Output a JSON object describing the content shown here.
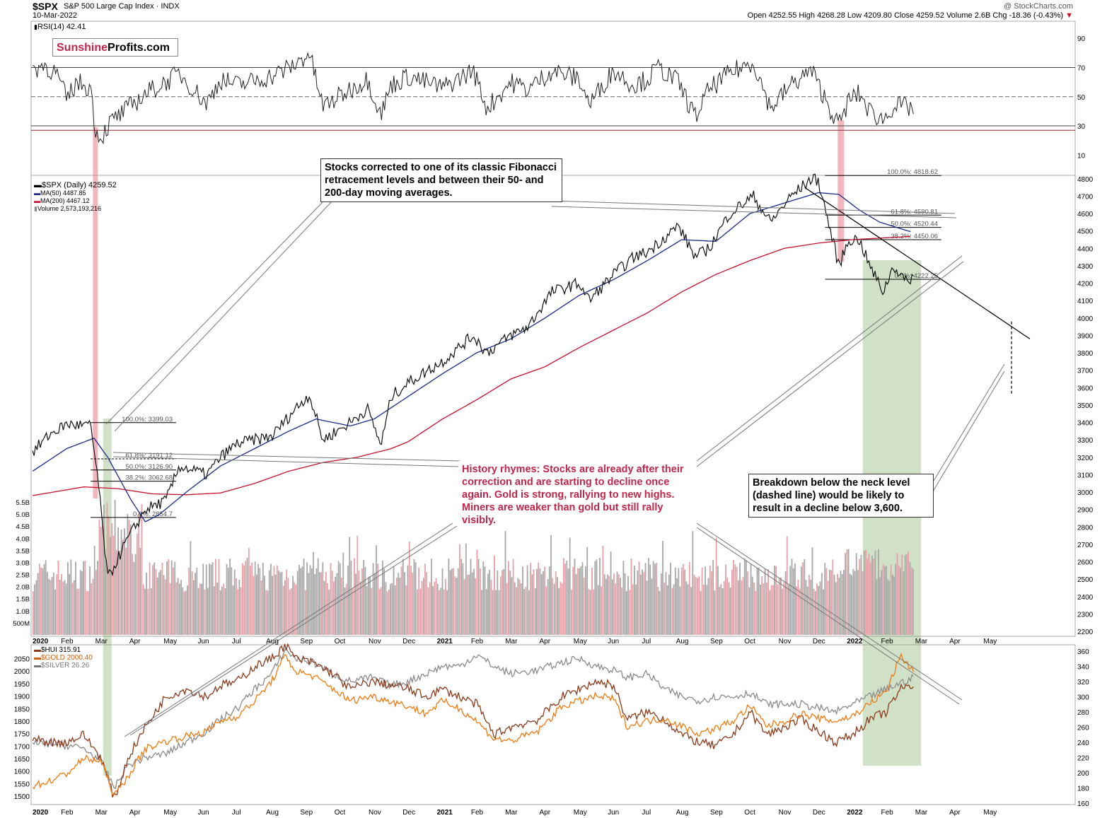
{
  "header": {
    "symbol": "$SPX",
    "name": "S&P 500 Large Cap Index",
    "exchange": "INDX",
    "date": "10-Mar-2022",
    "watermark": "@ StockCharts.com",
    "ohlc": "Open 4252.55  High 4268.28  Low 4209.80  Close 4259.52  Volume 2.6B  Chg -18.36 (-0.43%)",
    "chg_arrow": "▼"
  },
  "logo": {
    "part1": "Sunshine",
    "part2": "Profits.com"
  },
  "legends": {
    "rsi": "RSI(14) 42.41",
    "spx": "$SPX (Daily) 4259.52",
    "ma50": "MA(50) 4487.85",
    "ma200": "MA(200) 4467.12",
    "volume": "Volume 2,573,193,216",
    "hui": "$HUI 315.91",
    "gold": "$GOLD 2000.40",
    "silver": "$SILVER 26.26"
  },
  "annotations": {
    "fib": "Stocks corrected to one of its classic Fibonacci retracement levels and between their 50- and 200-day moving averages.",
    "history": "History rhymes: Stocks are already after their correction and are starting to decline once again. Gold is strong, rallying to new highs. Miners are weaker than gold but still rally visibly.",
    "breakdown": "Breakdown below the neck level (dashed line) would be likely to result in a decline below 3,600."
  },
  "fib_2020": [
    {
      "label": "100.0%: 3399.03",
      "price": 3399.03
    },
    {
      "label": "61.8%: 3191.12",
      "price": 3191.12
    },
    {
      "label": "50.0%: 3126.90",
      "price": 3126.9
    },
    {
      "label": "38.2%: 3062.68",
      "price": 3062.68
    },
    {
      "label": "0.0%: 2854.7",
      "price": 2854.7
    }
  ],
  "fib_2022": [
    {
      "label": "100.0%: 4818.62",
      "price": 4818.62
    },
    {
      "label": "61.8%: 4590.81",
      "price": 4590.81
    },
    {
      "label": "50.0%: 4520.44",
      "price": 4520.44
    },
    {
      "label": "38.2%: 4450.06",
      "price": 4450.06
    },
    {
      "label": "0.0%: 4222.25",
      "price": 4222.25
    }
  ],
  "colors": {
    "spx": "#111111",
    "ma50": "#1b2a8a",
    "ma200": "#c8102e",
    "hui": "#8b3a1a",
    "gold": "#f07a10",
    "silver": "#8a8a8a",
    "rsi_up": "#3f6e3f",
    "rsi_down": "#8b2a2a",
    "vol_up": "#a8a8a8",
    "vol_down": "#e8a0a8",
    "green_zone": "#7aa860",
    "red_zone": "#e06070"
  },
  "chart_data": {
    "type": "line",
    "title": "$SPX S&P 500 Large Cap Index",
    "x_ticks": [
      "2020",
      "Feb",
      "Mar",
      "Apr",
      "May",
      "Jun",
      "Jul",
      "Aug",
      "Sep",
      "Oct",
      "Nov",
      "Dec",
      "2021",
      "Feb",
      "Mar",
      "Apr",
      "May",
      "Jun",
      "Jul",
      "Aug",
      "Sep",
      "Oct",
      "Nov",
      "Dec",
      "2022",
      "Feb",
      "Mar",
      "Apr",
      "May"
    ],
    "rsi_ticks": [
      90,
      70,
      50,
      30,
      10
    ],
    "rsi_levels": [
      70,
      50,
      30
    ],
    "price_ticks": [
      2200,
      2300,
      2400,
      2500,
      2600,
      2700,
      2800,
      2900,
      3000,
      3100,
      3200,
      3300,
      3400,
      3500,
      3600,
      3700,
      3800,
      3900,
      4000,
      4100,
      4200,
      4300,
      4400,
      4500,
      4600,
      4700,
      4800
    ],
    "price_ylim": [
      2180,
      4860
    ],
    "volume_ticks": [
      "5.5B",
      "5.0B",
      "4.5B",
      "4.0B",
      "3.5B",
      "3.0B",
      "2.5B",
      "2.0B",
      "1.5B",
      "1.0B",
      "500M"
    ],
    "volume_values": [
      5.5,
      5.0,
      4.5,
      4.0,
      3.5,
      3.0,
      2.5,
      2.0,
      1.5,
      1.0,
      0.5
    ],
    "gold_ticks": [
      2050,
      2000,
      1950,
      1900,
      1850,
      1800,
      1750,
      1700,
      1650,
      1600,
      1550,
      1500
    ],
    "hui_ticks": [
      360,
      340,
      320,
      300,
      280,
      260,
      240,
      220,
      200,
      180,
      160
    ],
    "spx_anchors": [
      [
        0,
        3230
      ],
      [
        0.5,
        3330
      ],
      [
        1.0,
        3390
      ],
      [
        1.7,
        3380
      ],
      [
        1.9,
        3100
      ],
      [
        2.2,
        2500
      ],
      [
        2.7,
        2700
      ],
      [
        3.3,
        2900
      ],
      [
        3.9,
        2950
      ],
      [
        4.3,
        3150
      ],
      [
        5.1,
        3100
      ],
      [
        5.5,
        3200
      ],
      [
        6.0,
        3280
      ],
      [
        7.0,
        3320
      ],
      [
        7.7,
        3480
      ],
      [
        8.1,
        3560
      ],
      [
        8.5,
        3300
      ],
      [
        9.3,
        3400
      ],
      [
        9.8,
        3480
      ],
      [
        10.2,
        3270
      ],
      [
        10.5,
        3550
      ],
      [
        11.0,
        3630
      ],
      [
        12.0,
        3750
      ],
      [
        12.9,
        3900
      ],
      [
        13.3,
        3800
      ],
      [
        14.0,
        3900
      ],
      [
        14.5,
        3950
      ],
      [
        15.2,
        4150
      ],
      [
        16.0,
        4200
      ],
      [
        16.3,
        4100
      ],
      [
        17.0,
        4250
      ],
      [
        17.6,
        4350
      ],
      [
        18.0,
        4380
      ],
      [
        18.3,
        4430
      ],
      [
        18.9,
        4530
      ],
      [
        19.4,
        4350
      ],
      [
        19.8,
        4400
      ],
      [
        20.4,
        4600
      ],
      [
        21.1,
        4700
      ],
      [
        21.6,
        4550
      ],
      [
        22.2,
        4700
      ],
      [
        22.8,
        4800
      ],
      [
        23.0,
        4790
      ],
      [
        23.6,
        4300
      ],
      [
        23.9,
        4450
      ],
      [
        24.2,
        4450
      ],
      [
        24.5,
        4300
      ],
      [
        24.9,
        4150
      ],
      [
        25.2,
        4300
      ],
      [
        25.6,
        4200
      ],
      [
        25.8,
        4260
      ]
    ],
    "ma50_anchors": [
      [
        0,
        3120
      ],
      [
        1.0,
        3250
      ],
      [
        1.8,
        3310
      ],
      [
        2.2,
        3200
      ],
      [
        2.9,
        2950
      ],
      [
        3.3,
        2830
      ],
      [
        3.7,
        2870
      ],
      [
        4.5,
        3000
      ],
      [
        5.5,
        3150
      ],
      [
        6.5,
        3250
      ],
      [
        7.5,
        3350
      ],
      [
        8.3,
        3420
      ],
      [
        9.3,
        3380
      ],
      [
        10.0,
        3420
      ],
      [
        11.0,
        3550
      ],
      [
        12.0,
        3680
      ],
      [
        13.0,
        3800
      ],
      [
        14.0,
        3880
      ],
      [
        15.0,
        4000
      ],
      [
        16.0,
        4130
      ],
      [
        17.0,
        4220
      ],
      [
        18.0,
        4330
      ],
      [
        19.0,
        4450
      ],
      [
        20.0,
        4440
      ],
      [
        21.0,
        4600
      ],
      [
        22.0,
        4660
      ],
      [
        23.0,
        4720
      ],
      [
        23.6,
        4710
      ],
      [
        24.2,
        4620
      ],
      [
        24.8,
        4550
      ],
      [
        25.8,
        4490
      ]
    ],
    "ma200_anchors": [
      [
        0,
        2980
      ],
      [
        1.5,
        3030
      ],
      [
        2.5,
        3020
      ],
      [
        3.5,
        2990
      ],
      [
        4.5,
        2985
      ],
      [
        5.5,
        2995
      ],
      [
        6.5,
        3050
      ],
      [
        7.5,
        3120
      ],
      [
        8.5,
        3170
      ],
      [
        9.5,
        3200
      ],
      [
        10.5,
        3250
      ],
      [
        11.0,
        3290
      ],
      [
        12.0,
        3420
      ],
      [
        13.0,
        3530
      ],
      [
        14.0,
        3650
      ],
      [
        15.0,
        3720
      ],
      [
        16.0,
        3830
      ],
      [
        17.0,
        3930
      ],
      [
        18.0,
        4030
      ],
      [
        19.0,
        4150
      ],
      [
        20.0,
        4250
      ],
      [
        21.0,
        4330
      ],
      [
        22.0,
        4400
      ],
      [
        23.0,
        4430
      ],
      [
        24.0,
        4450
      ],
      [
        25.8,
        4470
      ]
    ],
    "rsi_anchors": [
      [
        0,
        68
      ],
      [
        0.3,
        72
      ],
      [
        0.7,
        66
      ],
      [
        1.0,
        48
      ],
      [
        1.3,
        60
      ],
      [
        1.7,
        56
      ],
      [
        1.85,
        26
      ],
      [
        2.0,
        22
      ],
      [
        2.3,
        33
      ],
      [
        2.7,
        40
      ],
      [
        3.3,
        52
      ],
      [
        3.9,
        60
      ],
      [
        4.3,
        66
      ],
      [
        5.1,
        45
      ],
      [
        5.5,
        62
      ],
      [
        6.0,
        58
      ],
      [
        7.0,
        64
      ],
      [
        7.7,
        72
      ],
      [
        8.1,
        80
      ],
      [
        8.5,
        43
      ],
      [
        9.3,
        55
      ],
      [
        9.8,
        62
      ],
      [
        10.2,
        38
      ],
      [
        10.5,
        58
      ],
      [
        11.0,
        64
      ],
      [
        12.0,
        56
      ],
      [
        12.9,
        68
      ],
      [
        13.3,
        42
      ],
      [
        14.0,
        60
      ],
      [
        14.5,
        55
      ],
      [
        15.2,
        68
      ],
      [
        16.0,
        62
      ],
      [
        16.3,
        45
      ],
      [
        17.0,
        68
      ],
      [
        17.6,
        58
      ],
      [
        18.0,
        62
      ],
      [
        18.3,
        70
      ],
      [
        18.9,
        60
      ],
      [
        19.4,
        36
      ],
      [
        19.8,
        55
      ],
      [
        20.4,
        66
      ],
      [
        21.1,
        74
      ],
      [
        21.6,
        42
      ],
      [
        22.2,
        58
      ],
      [
        22.8,
        68
      ],
      [
        23.0,
        58
      ],
      [
        23.6,
        30
      ],
      [
        23.9,
        48
      ],
      [
        24.2,
        52
      ],
      [
        24.5,
        40
      ],
      [
        24.9,
        34
      ],
      [
        25.2,
        44
      ],
      [
        25.8,
        42
      ]
    ],
    "gold_anchors": [
      [
        0,
        1540
      ],
      [
        0.5,
        1560
      ],
      [
        1.0,
        1590
      ],
      [
        1.5,
        1650
      ],
      [
        2.0,
        1640
      ],
      [
        2.4,
        1500
      ],
      [
        2.8,
        1580
      ],
      [
        3.3,
        1690
      ],
      [
        3.9,
        1720
      ],
      [
        4.5,
        1740
      ],
      [
        5.1,
        1760
      ],
      [
        5.5,
        1800
      ],
      [
        6.0,
        1820
      ],
      [
        6.5,
        1880
      ],
      [
        7.0,
        1960
      ],
      [
        7.4,
        2060
      ],
      [
        7.7,
        2000
      ],
      [
        8.2,
        1980
      ],
      [
        8.8,
        1930
      ],
      [
        9.3,
        1880
      ],
      [
        9.9,
        1900
      ],
      [
        10.5,
        1880
      ],
      [
        11.0,
        1860
      ],
      [
        11.5,
        1830
      ],
      [
        12.0,
        1880
      ],
      [
        12.5,
        1850
      ],
      [
        13.0,
        1800
      ],
      [
        13.5,
        1730
      ],
      [
        14.0,
        1720
      ],
      [
        14.8,
        1760
      ],
      [
        15.5,
        1860
      ],
      [
        16.0,
        1880
      ],
      [
        16.5,
        1900
      ],
      [
        17.0,
        1890
      ],
      [
        17.4,
        1780
      ],
      [
        18.0,
        1800
      ],
      [
        18.5,
        1810
      ],
      [
        19.0,
        1780
      ],
      [
        19.5,
        1750
      ],
      [
        20.0,
        1770
      ],
      [
        20.5,
        1800
      ],
      [
        21.0,
        1860
      ],
      [
        21.5,
        1780
      ],
      [
        22.0,
        1800
      ],
      [
        22.5,
        1830
      ],
      [
        23.0,
        1810
      ],
      [
        23.5,
        1800
      ],
      [
        24.0,
        1820
      ],
      [
        24.5,
        1870
      ],
      [
        25.0,
        1920
      ],
      [
        25.4,
        2060
      ],
      [
        25.8,
        2000
      ]
    ],
    "hui_anchors": [
      [
        0,
        245
      ],
      [
        0.5,
        240
      ],
      [
        1.0,
        240
      ],
      [
        1.5,
        250
      ],
      [
        2.0,
        220
      ],
      [
        2.4,
        165
      ],
      [
        2.8,
        220
      ],
      [
        3.3,
        260
      ],
      [
        3.9,
        300
      ],
      [
        4.5,
        310
      ],
      [
        5.1,
        300
      ],
      [
        5.5,
        315
      ],
      [
        6.0,
        320
      ],
      [
        6.5,
        340
      ],
      [
        7.0,
        350
      ],
      [
        7.4,
        368
      ],
      [
        7.7,
        350
      ],
      [
        8.2,
        345
      ],
      [
        8.8,
        330
      ],
      [
        9.3,
        310
      ],
      [
        9.9,
        320
      ],
      [
        10.5,
        315
      ],
      [
        11.0,
        310
      ],
      [
        11.5,
        300
      ],
      [
        12.0,
        310
      ],
      [
        12.5,
        300
      ],
      [
        13.0,
        290
      ],
      [
        13.5,
        250
      ],
      [
        14.0,
        260
      ],
      [
        14.8,
        270
      ],
      [
        15.5,
        300
      ],
      [
        16.0,
        310
      ],
      [
        16.5,
        320
      ],
      [
        17.0,
        315
      ],
      [
        17.4,
        270
      ],
      [
        18.0,
        280
      ],
      [
        18.5,
        270
      ],
      [
        19.0,
        250
      ],
      [
        19.5,
        240
      ],
      [
        20.0,
        235
      ],
      [
        20.5,
        250
      ],
      [
        21.0,
        280
      ],
      [
        21.5,
        250
      ],
      [
        22.0,
        260
      ],
      [
        22.5,
        270
      ],
      [
        23.0,
        255
      ],
      [
        23.5,
        240
      ],
      [
        24.0,
        250
      ],
      [
        24.5,
        270
      ],
      [
        25.0,
        280
      ],
      [
        25.4,
        310
      ],
      [
        25.8,
        316
      ]
    ],
    "silver_anchors": [
      [
        0,
        238
      ],
      [
        0.5,
        238
      ],
      [
        1.0,
        236
      ],
      [
        1.5,
        232
      ],
      [
        2.0,
        215
      ],
      [
        2.4,
        180
      ],
      [
        2.8,
        210
      ],
      [
        3.3,
        220
      ],
      [
        3.9,
        225
      ],
      [
        4.5,
        240
      ],
      [
        5.1,
        255
      ],
      [
        5.5,
        270
      ],
      [
        6.0,
        285
      ],
      [
        6.5,
        310
      ],
      [
        7.0,
        330
      ],
      [
        7.4,
        362
      ],
      [
        7.7,
        350
      ],
      [
        8.2,
        345
      ],
      [
        8.8,
        330
      ],
      [
        9.3,
        320
      ],
      [
        9.9,
        325
      ],
      [
        10.5,
        315
      ],
      [
        11.0,
        320
      ],
      [
        11.5,
        330
      ],
      [
        12.0,
        340
      ],
      [
        12.5,
        340
      ],
      [
        13.0,
        355
      ],
      [
        13.5,
        340
      ],
      [
        14.0,
        330
      ],
      [
        14.8,
        335
      ],
      [
        15.5,
        345
      ],
      [
        16.0,
        350
      ],
      [
        16.5,
        340
      ],
      [
        17.0,
        335
      ],
      [
        17.4,
        325
      ],
      [
        18.0,
        330
      ],
      [
        18.5,
        310
      ],
      [
        19.0,
        300
      ],
      [
        19.5,
        295
      ],
      [
        20.0,
        300
      ],
      [
        20.5,
        300
      ],
      [
        21.0,
        305
      ],
      [
        21.5,
        290
      ],
      [
        22.0,
        290
      ],
      [
        22.5,
        290
      ],
      [
        23.0,
        285
      ],
      [
        23.5,
        280
      ],
      [
        24.0,
        290
      ],
      [
        24.5,
        300
      ],
      [
        25.0,
        310
      ],
      [
        25.4,
        318
      ],
      [
        25.8,
        325
      ]
    ]
  }
}
